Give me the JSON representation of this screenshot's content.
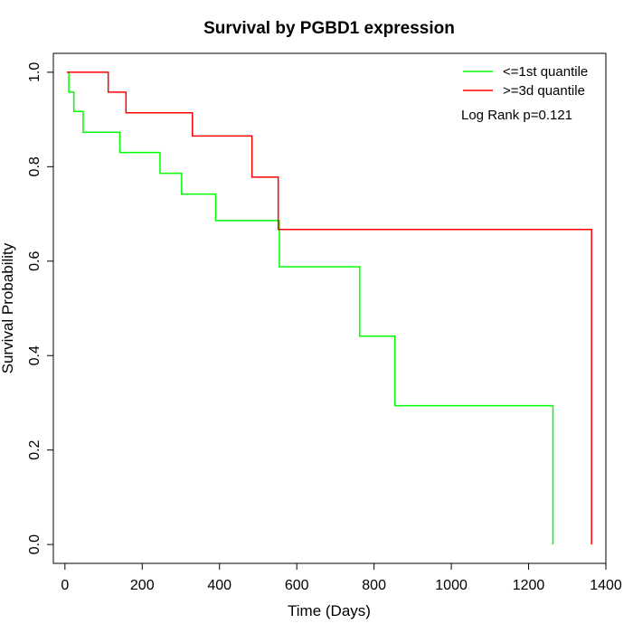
{
  "chart_data": {
    "type": "line",
    "title": "Survival by PGBD1 expression",
    "xlabel": "Time (Days)",
    "ylabel": "Survival Probability",
    "xlim": [
      -30,
      1400
    ],
    "ylim": [
      -0.04,
      1.04
    ],
    "xticks": [
      "0",
      "200",
      "400",
      "600",
      "800",
      "1000",
      "1200",
      "1400"
    ],
    "yticks": [
      "0.0",
      "0.2",
      "0.4",
      "0.6",
      "0.8",
      "1.0"
    ],
    "grid": false,
    "legend_position": "top-right",
    "annotation": "Log Rank p=0.121",
    "series": [
      {
        "name": "<=1st quantile",
        "color": "#00ff00",
        "step": true,
        "x": [
          5,
          10,
          23,
          47,
          142,
          246,
          302,
          390,
          555,
          763,
          854,
          1263,
          1263
        ],
        "y": [
          1.0,
          0.958,
          0.917,
          0.873,
          0.83,
          0.786,
          0.742,
          0.686,
          0.588,
          0.441,
          0.294,
          0.294,
          0.0
        ]
      },
      {
        "name": ">=3d quantile",
        "color": "#ff0000",
        "step": true,
        "x": [
          5,
          112,
          158,
          330,
          484,
          552,
          1363,
          1363
        ],
        "y": [
          1.0,
          0.958,
          0.914,
          0.865,
          0.778,
          0.667,
          0.667,
          0.0
        ]
      }
    ]
  }
}
